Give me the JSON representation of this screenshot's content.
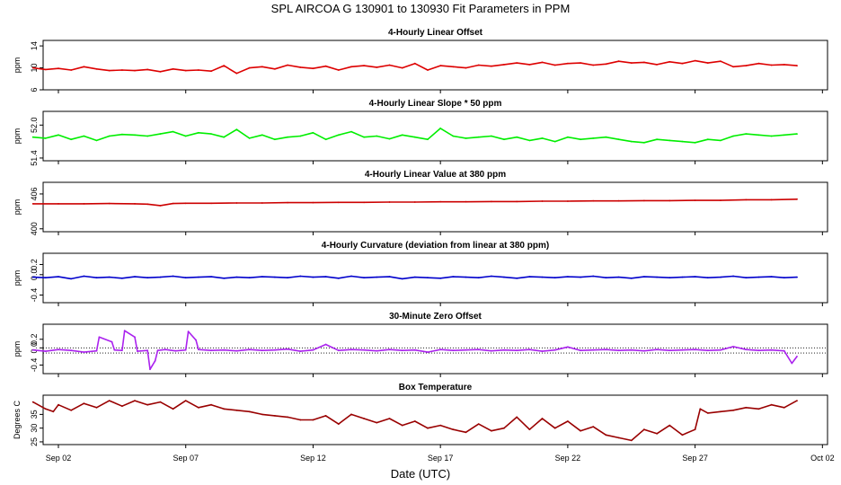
{
  "chart_data": {
    "type": "line",
    "title": "SPL   AIRCOA G   130901 to 130930   Fit Parameters in PPM",
    "xlabel": "Date (UTC)",
    "x_unit": "days since Sep 01 00:00 UTC",
    "xlim": [
      0.4,
      31.2
    ],
    "x_ticks": [
      {
        "day": 1,
        "label": "Sep 02"
      },
      {
        "day": 6,
        "label": "Sep 07"
      },
      {
        "day": 11,
        "label": "Sep 12"
      },
      {
        "day": 16,
        "label": "Sep 17"
      },
      {
        "day": 21,
        "label": "Sep 22"
      },
      {
        "day": 26,
        "label": "Sep 27"
      },
      {
        "day": 31,
        "label": "Oct 02"
      }
    ],
    "panels": [
      {
        "key": "offset",
        "title": "4-Hourly Linear Offset",
        "ylabel": "ppm",
        "ylim": [
          6,
          15
        ],
        "yticks": [
          "6",
          "10",
          "14"
        ],
        "ytick_values": [
          6,
          10,
          14
        ],
        "series_color": "#dd0000",
        "series": {
          "name": "4-Hourly Linear Offset",
          "x": [
            0.0,
            0.5,
            1.0,
            1.5,
            2.0,
            2.5,
            3.0,
            3.5,
            4.0,
            4.5,
            5.0,
            5.5,
            6.0,
            6.5,
            7.0,
            7.5,
            8.0,
            8.5,
            9.0,
            9.5,
            10.0,
            10.5,
            11.0,
            11.5,
            12.0,
            12.5,
            13.0,
            13.5,
            14.0,
            14.5,
            15.0,
            15.5,
            16.0,
            16.5,
            17.0,
            17.5,
            18.0,
            18.5,
            19.0,
            19.5,
            20.0,
            20.5,
            21.0,
            21.5,
            22.0,
            22.5,
            23.0,
            23.5,
            24.0,
            24.5,
            25.0,
            25.5,
            26.0,
            26.5,
            27.0,
            27.5,
            28.0,
            28.5,
            29.0,
            29.5,
            30.0
          ],
          "y": [
            10.0,
            9.7,
            9.9,
            9.6,
            10.2,
            9.8,
            9.5,
            9.6,
            9.5,
            9.7,
            9.3,
            9.8,
            9.5,
            9.6,
            9.4,
            10.4,
            9.0,
            10.0,
            10.2,
            9.8,
            10.5,
            10.1,
            9.9,
            10.3,
            9.6,
            10.2,
            10.4,
            10.1,
            10.5,
            10.0,
            10.8,
            9.6,
            10.4,
            10.2,
            10.0,
            10.5,
            10.3,
            10.6,
            10.9,
            10.6,
            11.0,
            10.5,
            10.8,
            10.9,
            10.5,
            10.7,
            11.2,
            10.9,
            11.0,
            10.6,
            11.1,
            10.8,
            11.3,
            10.9,
            11.2,
            10.2,
            10.4,
            10.8,
            10.5,
            10.6,
            10.4
          ]
        }
      },
      {
        "key": "slope",
        "title": "4-Hourly Linear Slope * 50 ppm",
        "ylabel": "ppm",
        "ylim": [
          51.35,
          52.25
        ],
        "yticks": [
          "51.4",
          "52.0"
        ],
        "ytick_values": [
          51.4,
          52.0
        ],
        "series_color": "#00ee00",
        "series": {
          "name": "4-Hourly Linear Slope * 50 ppm",
          "x": [
            0.0,
            0.5,
            1.0,
            1.5,
            2.0,
            2.5,
            3.0,
            3.5,
            4.0,
            4.5,
            5.0,
            5.5,
            6.0,
            6.5,
            7.0,
            7.5,
            8.0,
            8.5,
            9.0,
            9.5,
            10.0,
            10.5,
            11.0,
            11.5,
            12.0,
            12.5,
            13.0,
            13.5,
            14.0,
            14.5,
            15.0,
            15.5,
            16.0,
            16.5,
            17.0,
            17.5,
            18.0,
            18.5,
            19.0,
            19.5,
            20.0,
            20.5,
            21.0,
            21.5,
            22.0,
            22.5,
            23.0,
            23.5,
            24.0,
            24.5,
            25.0,
            25.5,
            26.0,
            26.5,
            27.0,
            27.5,
            28.0,
            28.5,
            29.0,
            29.5,
            30.0
          ],
          "y": [
            51.78,
            51.76,
            51.82,
            51.74,
            51.8,
            51.72,
            51.8,
            51.83,
            51.82,
            51.8,
            51.84,
            51.88,
            51.8,
            51.86,
            51.84,
            51.78,
            51.92,
            51.76,
            51.82,
            51.74,
            51.78,
            51.8,
            51.86,
            51.74,
            51.82,
            51.88,
            51.78,
            51.8,
            51.75,
            51.82,
            51.78,
            51.74,
            51.94,
            51.8,
            51.76,
            51.78,
            51.8,
            51.74,
            51.78,
            51.72,
            51.76,
            51.7,
            51.78,
            51.74,
            51.76,
            51.78,
            51.74,
            51.7,
            51.68,
            51.74,
            51.72,
            51.7,
            51.68,
            51.74,
            51.72,
            51.8,
            51.84,
            51.82,
            51.8,
            51.82,
            51.84
          ]
        }
      },
      {
        "key": "value380",
        "title": "4-Hourly Linear Value at 380 ppm",
        "ylabel": "ppm",
        "ylim": [
          399.5,
          408
        ],
        "yticks": [
          "400",
          "406"
        ],
        "ytick_values": [
          400,
          406
        ],
        "series_color": "#cc0000",
        "series": {
          "name": "4-Hourly Linear Value at 380 ppm",
          "x": [
            0.0,
            1.0,
            2.0,
            3.0,
            4.0,
            4.5,
            5.0,
            5.5,
            6.0,
            7.0,
            8.0,
            9.0,
            10.0,
            11.0,
            12.0,
            13.0,
            14.0,
            15.0,
            16.0,
            17.0,
            18.0,
            19.0,
            20.0,
            21.0,
            22.0,
            23.0,
            24.0,
            25.0,
            26.0,
            27.0,
            28.0,
            29.0,
            30.0
          ],
          "y": [
            404.3,
            404.3,
            404.3,
            404.35,
            404.3,
            404.25,
            404.0,
            404.35,
            404.4,
            404.4,
            404.45,
            404.45,
            404.5,
            404.5,
            404.55,
            404.55,
            404.6,
            404.6,
            404.65,
            404.65,
            404.7,
            404.7,
            404.75,
            404.75,
            404.8,
            404.8,
            404.85,
            404.85,
            404.9,
            404.9,
            405.0,
            405.0,
            405.1
          ]
        }
      },
      {
        "key": "curvature",
        "title": "4-Hourly Curvature (deviation from linear at 380 ppm)",
        "ylabel": "ppm",
        "ylim": [
          -0.55,
          0.42
        ],
        "yticks": [
          "-0.4",
          "0.0",
          "0.2"
        ],
        "ytick_values": [
          -0.4,
          0.0,
          0.2
        ],
        "series_color": "#0000cc",
        "series": {
          "name": "4-Hourly Curvature",
          "x": [
            0.0,
            0.5,
            1.0,
            1.5,
            2.0,
            2.5,
            3.0,
            3.5,
            4.0,
            4.5,
            5.0,
            5.5,
            6.0,
            6.5,
            7.0,
            7.5,
            8.0,
            8.5,
            9.0,
            9.5,
            10.0,
            10.5,
            11.0,
            11.5,
            12.0,
            12.5,
            13.0,
            13.5,
            14.0,
            14.5,
            15.0,
            15.5,
            16.0,
            16.5,
            17.0,
            17.5,
            18.0,
            18.5,
            19.0,
            19.5,
            20.0,
            20.5,
            21.0,
            21.5,
            22.0,
            22.5,
            23.0,
            23.5,
            24.0,
            24.5,
            25.0,
            25.5,
            26.0,
            26.5,
            27.0,
            27.5,
            28.0,
            28.5,
            29.0,
            29.5,
            30.0
          ],
          "y": [
            -0.05,
            -0.06,
            -0.04,
            -0.08,
            -0.03,
            -0.06,
            -0.05,
            -0.07,
            -0.04,
            -0.06,
            -0.05,
            -0.03,
            -0.06,
            -0.05,
            -0.04,
            -0.07,
            -0.05,
            -0.06,
            -0.04,
            -0.05,
            -0.06,
            -0.03,
            -0.05,
            -0.04,
            -0.07,
            -0.03,
            -0.06,
            -0.05,
            -0.04,
            -0.08,
            -0.05,
            -0.06,
            -0.07,
            -0.04,
            -0.05,
            -0.06,
            -0.03,
            -0.05,
            -0.07,
            -0.04,
            -0.05,
            -0.06,
            -0.04,
            -0.05,
            -0.03,
            -0.06,
            -0.05,
            -0.07,
            -0.04,
            -0.05,
            -0.06,
            -0.05,
            -0.04,
            -0.06,
            -0.05,
            -0.03,
            -0.06,
            -0.05,
            -0.04,
            -0.06,
            -0.05
          ]
        }
      },
      {
        "key": "zero",
        "title": "30-Minute Zero Offset",
        "ylabel": "ppm",
        "ylim": [
          -0.6,
          0.55
        ],
        "yticks": [
          "-0.4",
          "0.0",
          "0.2"
        ],
        "ytick_values": [
          -0.4,
          0.0,
          0.2
        ],
        "ref_lines": [
          0.0,
          -0.12
        ],
        "series_color": "#aa22ee",
        "series": {
          "name": "30-Minute Zero Offset",
          "x": [
            0.0,
            0.5,
            1.0,
            1.5,
            2.0,
            2.5,
            2.6,
            3.1,
            3.2,
            3.5,
            3.6,
            4.0,
            4.1,
            4.5,
            4.6,
            4.8,
            4.9,
            5.2,
            5.6,
            6.0,
            6.1,
            6.4,
            6.5,
            7.0,
            7.5,
            8.0,
            8.5,
            9.0,
            9.5,
            10.0,
            10.5,
            11.0,
            11.5,
            12.0,
            12.5,
            13.0,
            13.5,
            14.0,
            14.5,
            15.0,
            15.5,
            16.0,
            16.5,
            17.0,
            17.5,
            18.0,
            18.5,
            19.0,
            19.5,
            20.0,
            20.5,
            21.0,
            21.5,
            22.0,
            22.5,
            23.0,
            23.5,
            24.0,
            24.5,
            25.0,
            25.5,
            26.0,
            26.5,
            27.0,
            27.5,
            28.0,
            28.5,
            29.0,
            29.5,
            29.8,
            30.0
          ],
          "y": [
            -0.05,
            -0.08,
            -0.04,
            -0.06,
            -0.1,
            -0.07,
            0.25,
            0.14,
            -0.05,
            -0.06,
            0.4,
            0.25,
            -0.08,
            -0.06,
            -0.5,
            -0.3,
            -0.06,
            -0.04,
            -0.07,
            -0.05,
            0.38,
            0.18,
            -0.04,
            -0.06,
            -0.05,
            -0.07,
            -0.04,
            -0.06,
            -0.05,
            -0.03,
            -0.08,
            -0.05,
            0.08,
            -0.06,
            -0.04,
            -0.05,
            -0.07,
            -0.04,
            -0.06,
            -0.05,
            -0.1,
            -0.04,
            -0.06,
            -0.05,
            -0.04,
            -0.07,
            -0.05,
            -0.06,
            -0.04,
            -0.08,
            -0.05,
            0.02,
            -0.06,
            -0.05,
            -0.04,
            -0.06,
            -0.05,
            -0.07,
            -0.04,
            -0.06,
            -0.05,
            -0.04,
            -0.06,
            -0.05,
            0.03,
            -0.04,
            -0.06,
            -0.05,
            -0.07,
            -0.36,
            -0.2
          ]
        }
      },
      {
        "key": "boxtemp",
        "title": "Box Temperature",
        "ylabel": "Degrees C",
        "ylim": [
          24,
          42
        ],
        "yticks": [
          "25",
          "30",
          "35"
        ],
        "ytick_values": [
          25,
          30,
          35
        ],
        "series_color": "#990000",
        "series": {
          "name": "Box Temperature",
          "x": [
            0.0,
            0.5,
            0.8,
            1.0,
            1.5,
            2.0,
            2.5,
            3.0,
            3.5,
            4.0,
            4.5,
            5.0,
            5.5,
            6.0,
            6.5,
            7.0,
            7.5,
            8.0,
            8.5,
            9.0,
            9.5,
            10.0,
            10.5,
            11.0,
            11.5,
            12.0,
            12.5,
            13.0,
            13.5,
            14.0,
            14.5,
            15.0,
            15.5,
            16.0,
            16.5,
            17.0,
            17.5,
            18.0,
            18.5,
            19.0,
            19.5,
            20.0,
            20.5,
            21.0,
            21.5,
            22.0,
            22.5,
            23.0,
            23.5,
            24.0,
            24.5,
            25.0,
            25.5,
            26.0,
            26.2,
            26.5,
            27.0,
            27.5,
            28.0,
            28.5,
            29.0,
            29.5,
            30.0
          ],
          "y": [
            39.5,
            37.0,
            36.0,
            38.5,
            36.5,
            39.0,
            37.5,
            40.0,
            38.0,
            40.0,
            38.5,
            39.5,
            37.0,
            40.0,
            37.5,
            38.5,
            37.0,
            36.5,
            36.0,
            35.0,
            34.5,
            34.0,
            33.0,
            33.0,
            34.5,
            31.5,
            35.0,
            33.5,
            32.0,
            33.5,
            31.0,
            32.5,
            30.0,
            31.0,
            29.5,
            28.5,
            31.5,
            29.0,
            30.0,
            34.0,
            29.5,
            33.5,
            30.0,
            32.5,
            29.0,
            30.5,
            27.5,
            26.5,
            25.5,
            29.5,
            28.0,
            31.0,
            27.5,
            29.5,
            37.0,
            35.5,
            36.0,
            36.5,
            37.5,
            37.0,
            38.5,
            37.5,
            40.0
          ]
        }
      }
    ]
  }
}
